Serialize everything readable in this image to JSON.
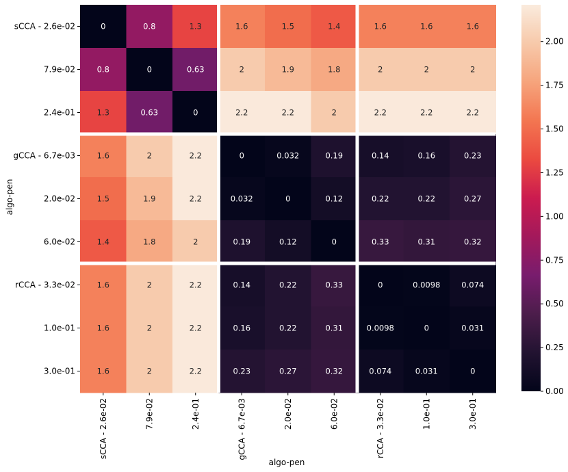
{
  "chart_data": {
    "type": "heatmap",
    "xlabel": "algo-pen",
    "ylabel": "algo-pen",
    "row_labels": [
      "sCCA - 2.6e-02",
      "7.9e-02",
      "2.4e-01",
      "gCCA - 6.7e-03",
      "2.0e-02",
      "6.0e-02",
      "rCCA - 3.3e-02",
      "1.0e-01",
      "3.0e-01"
    ],
    "col_labels": [
      "sCCA - 2.6e-02",
      "7.9e-02",
      "2.4e-01",
      "gCCA - 6.7e-03",
      "2.0e-02",
      "6.0e-02",
      "rCCA - 3.3e-02",
      "1.0e-01",
      "3.0e-01"
    ],
    "values": [
      [
        0,
        0.8,
        1.3,
        1.6,
        1.5,
        1.4,
        1.6,
        1.6,
        1.6
      ],
      [
        0.8,
        0,
        0.63,
        2,
        1.9,
        1.8,
        2,
        2,
        2
      ],
      [
        1.3,
        0.63,
        0,
        2.2,
        2.2,
        2,
        2.2,
        2.2,
        2.2
      ],
      [
        1.6,
        2,
        2.2,
        0,
        0.032,
        0.19,
        0.14,
        0.16,
        0.23
      ],
      [
        1.5,
        1.9,
        2.2,
        0.032,
        0,
        0.12,
        0.22,
        0.22,
        0.27
      ],
      [
        1.4,
        1.8,
        2,
        0.19,
        0.12,
        0,
        0.33,
        0.31,
        0.32
      ],
      [
        1.6,
        2,
        2.2,
        0.14,
        0.22,
        0.33,
        0,
        0.0098,
        0.074
      ],
      [
        1.6,
        2,
        2.2,
        0.16,
        0.22,
        0.31,
        0.0098,
        0,
        0.031
      ],
      [
        1.6,
        2,
        2.2,
        0.23,
        0.27,
        0.32,
        0.074,
        0.031,
        0
      ]
    ],
    "annotations": [
      [
        "0",
        "0.8",
        "1.3",
        "1.6",
        "1.5",
        "1.4",
        "1.6",
        "1.6",
        "1.6"
      ],
      [
        "0.8",
        "0",
        "0.63",
        "2",
        "1.9",
        "1.8",
        "2",
        "2",
        "2"
      ],
      [
        "1.3",
        "0.63",
        "0",
        "2.2",
        "2.2",
        "2",
        "2.2",
        "2.2",
        "2.2"
      ],
      [
        "1.6",
        "2",
        "2.2",
        "0",
        "0.032",
        "0.19",
        "0.14",
        "0.16",
        "0.23"
      ],
      [
        "1.5",
        "1.9",
        "2.2",
        "0.032",
        "0",
        "0.12",
        "0.22",
        "0.22",
        "0.27"
      ],
      [
        "1.4",
        "1.8",
        "2",
        "0.19",
        "0.12",
        "0",
        "0.33",
        "0.31",
        "0.32"
      ],
      [
        "1.6",
        "2",
        "2.2",
        "0.14",
        "0.22",
        "0.33",
        "0",
        "0.0098",
        "0.074"
      ],
      [
        "1.6",
        "2",
        "2.2",
        "0.16",
        "0.22",
        "0.31",
        "0.0098",
        "0",
        "0.031"
      ],
      [
        "1.6",
        "2",
        "2.2",
        "0.23",
        "0.27",
        "0.32",
        "0.074",
        "0.031",
        "0"
      ]
    ],
    "group_boundaries": [
      3,
      6
    ],
    "colorbar": {
      "min": 0,
      "max": 2.21,
      "ticks": [
        0,
        0.25,
        0.5,
        0.75,
        1,
        1.25,
        1.5,
        1.75,
        2
      ],
      "tick_labels": [
        "0.00",
        "0.25",
        "0.50",
        "0.75",
        "1.00",
        "1.25",
        "1.50",
        "1.75",
        "2.00"
      ]
    },
    "colormap": [
      "#03051a",
      "#221331",
      "#4c1d4b",
      "#781c6d",
      "#a3195b",
      "#cb1b4f",
      "#eb4a40",
      "#f37651",
      "#f6a47c",
      "#f7c9aa",
      "#faebdd"
    ],
    "grid": false,
    "legend": "none"
  }
}
